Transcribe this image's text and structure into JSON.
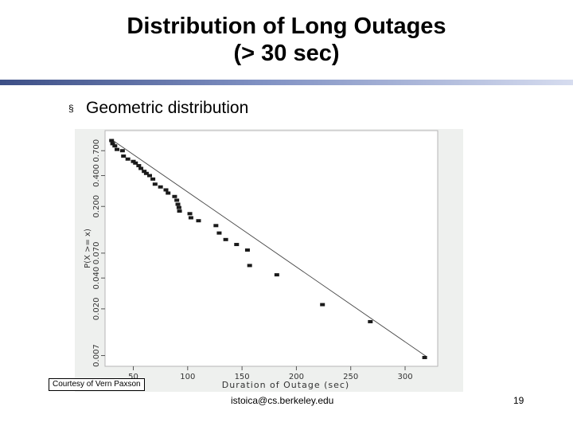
{
  "slide": {
    "title_line1": "Distribution of Long Outages",
    "title_line2": "(> 30 sec)",
    "bullet_marker": "§",
    "bullet_text": "Geometric distribution",
    "credit": "Courtesy of Vern Paxson",
    "footer_email": "istoica@cs.berkeley.edu",
    "page_number": "19"
  },
  "chart_data": {
    "type": "scatter",
    "xlabel": "Duration of Outage (sec)",
    "ylabel": "P(X >= x)",
    "x_scale": "linear",
    "y_scale": "log",
    "xlim": [
      24,
      330
    ],
    "ylim": [
      0.0055,
      1.1
    ],
    "x_ticks": [
      50,
      100,
      150,
      200,
      250,
      300
    ],
    "y_ticks": [
      0.007,
      0.02,
      0.04,
      0.07,
      0.2,
      0.4,
      0.7
    ],
    "y_tick_labels": [
      "0.007",
      "0.020",
      "0.040",
      "0.070",
      "0.200",
      "0.400",
      "0.700"
    ],
    "grid": false,
    "fit_line": {
      "x": [
        30,
        320
      ],
      "y": [
        0.9,
        0.0068
      ]
    },
    "series": [
      {
        "points": [
          {
            "x": 30,
            "y": 0.88
          },
          {
            "x": 31,
            "y": 0.82
          },
          {
            "x": 33,
            "y": 0.78
          },
          {
            "x": 35,
            "y": 0.72
          },
          {
            "x": 40,
            "y": 0.7
          },
          {
            "x": 41,
            "y": 0.62
          },
          {
            "x": 45,
            "y": 0.58
          },
          {
            "x": 50,
            "y": 0.55
          },
          {
            "x": 52,
            "y": 0.53
          },
          {
            "x": 55,
            "y": 0.5
          },
          {
            "x": 57,
            "y": 0.47
          },
          {
            "x": 60,
            "y": 0.44
          },
          {
            "x": 62,
            "y": 0.42
          },
          {
            "x": 65,
            "y": 0.4
          },
          {
            "x": 68,
            "y": 0.37
          },
          {
            "x": 70,
            "y": 0.33
          },
          {
            "x": 75,
            "y": 0.31
          },
          {
            "x": 80,
            "y": 0.29
          },
          {
            "x": 82,
            "y": 0.27
          },
          {
            "x": 88,
            "y": 0.25
          },
          {
            "x": 90,
            "y": 0.23
          },
          {
            "x": 91,
            "y": 0.21
          },
          {
            "x": 92,
            "y": 0.195
          },
          {
            "x": 92.5,
            "y": 0.18
          },
          {
            "x": 102,
            "y": 0.17
          },
          {
            "x": 103,
            "y": 0.155
          },
          {
            "x": 110,
            "y": 0.145
          },
          {
            "x": 126,
            "y": 0.13
          },
          {
            "x": 129,
            "y": 0.11
          },
          {
            "x": 135,
            "y": 0.095
          },
          {
            "x": 145,
            "y": 0.085
          },
          {
            "x": 155,
            "y": 0.075
          },
          {
            "x": 157,
            "y": 0.053
          },
          {
            "x": 182,
            "y": 0.043
          },
          {
            "x": 224,
            "y": 0.022
          },
          {
            "x": 268,
            "y": 0.015
          },
          {
            "x": 318,
            "y": 0.0067
          }
        ]
      }
    ]
  }
}
